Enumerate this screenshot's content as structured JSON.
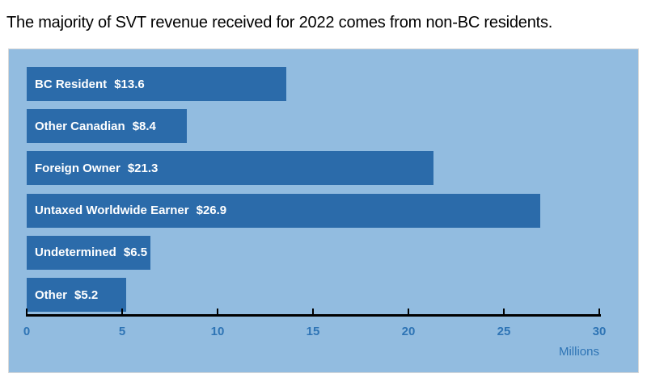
{
  "title": "The majority of SVT revenue received for 2022 comes from non-BC residents.",
  "colors": {
    "page_bg": "#FFFFFF",
    "title_text": "#000000",
    "panel_bg": "#92BCE0",
    "panel_border": "#D9D9D9",
    "bar_fill": "#2B6BAA",
    "bar_label_text": "#FFFFFF",
    "axis_line": "#000000",
    "axis_text": "#2E74B5"
  },
  "chart_data": {
    "type": "bar",
    "orientation": "horizontal",
    "title": "The majority of SVT revenue received for 2022 comes from non-BC residents.",
    "categories": [
      "BC Resident",
      "Other Canadian",
      "Foreign Owner",
      "Untaxed Worldwide Earner",
      "Undetermined",
      "Other"
    ],
    "values": [
      13.6,
      8.4,
      21.3,
      26.9,
      6.5,
      5.2
    ],
    "value_labels": [
      "$13.6",
      "$8.4",
      "$21.3",
      "$26.9",
      "$6.5",
      "$5.2"
    ],
    "bar_label_position": "inside-left",
    "xlim": [
      0,
      30
    ],
    "x_ticks": [
      0,
      5,
      10,
      15,
      20,
      25,
      30
    ],
    "x_unit_label": "Millions",
    "grid": false,
    "legend": false
  }
}
